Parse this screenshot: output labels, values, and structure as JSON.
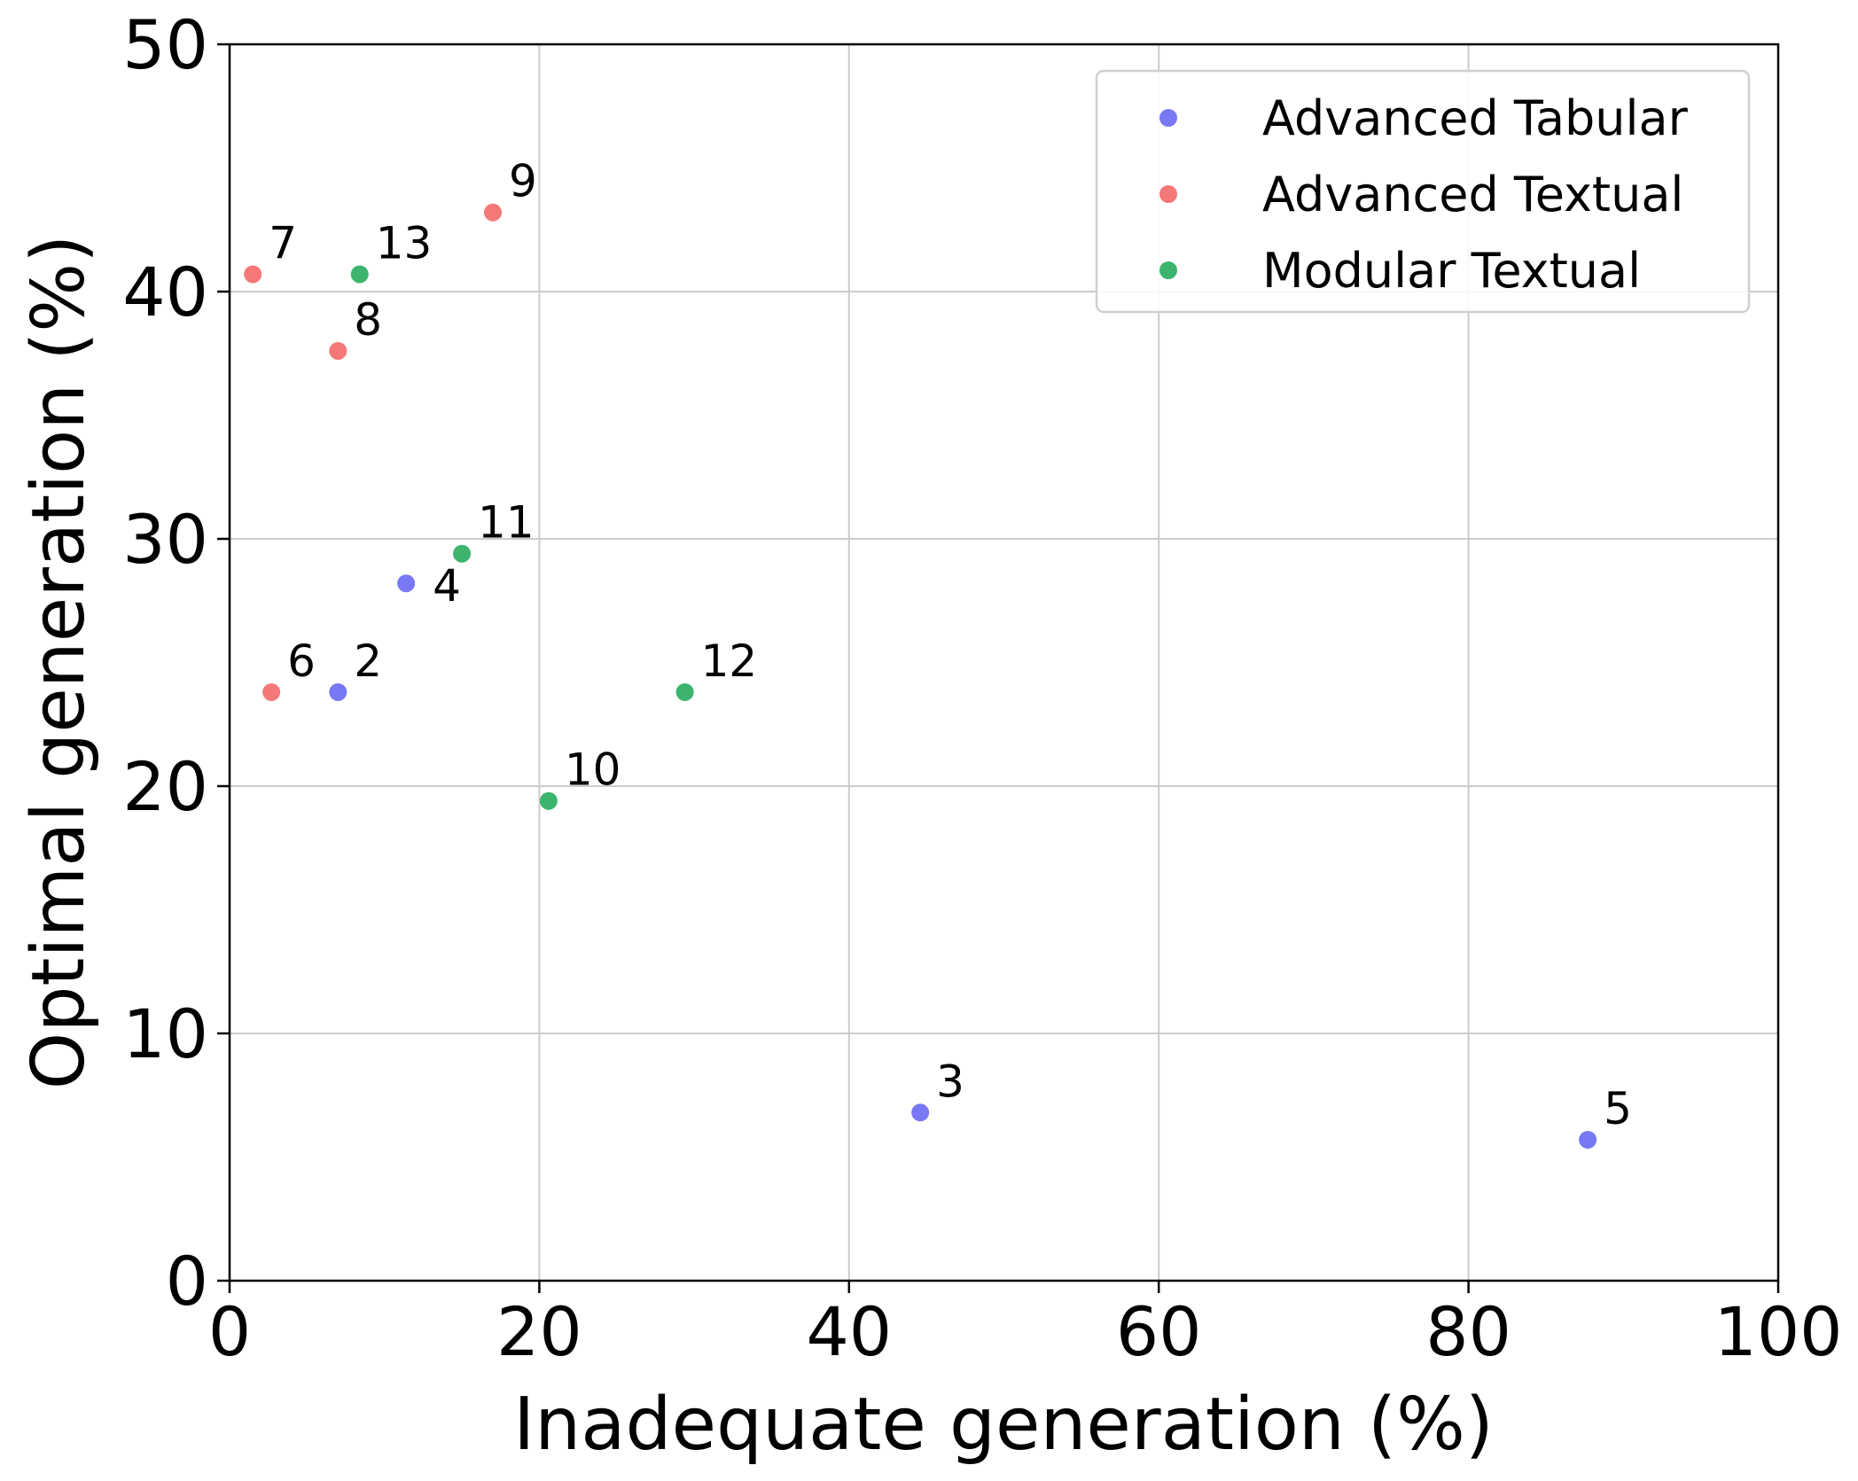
{
  "chart_data": {
    "type": "scatter",
    "title": "",
    "xlabel": "Inadequate generation (%)",
    "ylabel": "Optimal generation (%)",
    "xlim": [
      0,
      100
    ],
    "ylim": [
      0,
      50
    ],
    "xticks": [
      "0",
      "20",
      "40",
      "60",
      "80",
      "100"
    ],
    "yticks": [
      "0",
      "10",
      "20",
      "30",
      "40",
      "50"
    ],
    "grid": true,
    "legend_position": "top-right",
    "series": [
      {
        "name": "Advanced Tabular",
        "color": "#7878f5",
        "points": [
          {
            "label": "2",
            "x": 7.0,
            "y": 23.8
          },
          {
            "label": "3",
            "x": 44.6,
            "y": 6.8
          },
          {
            "label": "4",
            "x": 11.4,
            "y": 28.2
          },
          {
            "label": "5",
            "x": 87.7,
            "y": 5.7
          }
        ]
      },
      {
        "name": "Advanced Textual",
        "color": "#f57878",
        "points": [
          {
            "label": "6",
            "x": 2.7,
            "y": 23.8
          },
          {
            "label": "7",
            "x": 1.5,
            "y": 40.7
          },
          {
            "label": "8",
            "x": 7.0,
            "y": 37.6
          },
          {
            "label": "9",
            "x": 17.0,
            "y": 43.2
          }
        ]
      },
      {
        "name": "Modular Textual",
        "color": "#3cb46e",
        "points": [
          {
            "label": "10",
            "x": 20.6,
            "y": 19.4
          },
          {
            "label": "11",
            "x": 15.0,
            "y": 29.4
          },
          {
            "label": "12",
            "x": 29.4,
            "y": 23.8
          },
          {
            "label": "13",
            "x": 8.4,
            "y": 40.7
          }
        ]
      }
    ]
  }
}
